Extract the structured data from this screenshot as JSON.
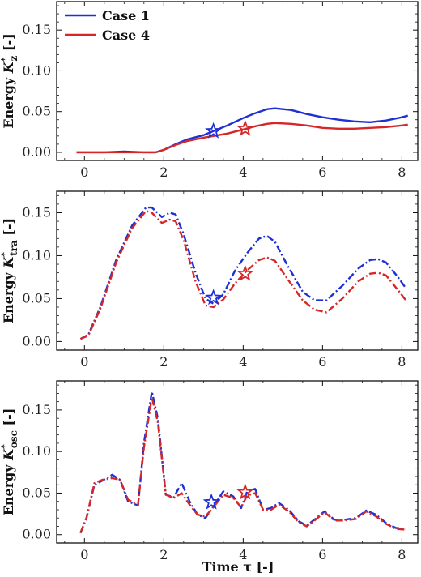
{
  "xlabel": "Time τ [-]",
  "legend": {
    "placement": "top-left",
    "entries": [
      {
        "name": "Case 1",
        "color": "#1f2fd6"
      },
      {
        "name": "Case 4",
        "color": "#d62728"
      }
    ]
  },
  "chart_data": [
    {
      "type": "line",
      "ylabel": "Energy K*z [-]",
      "ylabel_parts": {
        "prefix": "Energy ",
        "symbol": "K",
        "sup": "*",
        "sub": "z",
        "suffix": " [-]"
      },
      "xlim": [
        -0.7,
        8.4
      ],
      "ylim": [
        -0.01,
        0.185
      ],
      "xticks": [
        0,
        2,
        4,
        6,
        8
      ],
      "yticks": [
        0.0,
        0.05,
        0.1,
        0.15
      ],
      "ytick_labels": [
        "0.00",
        "0.05",
        "0.10",
        "0.15"
      ],
      "line_style": "solid",
      "series": [
        {
          "name": "Case 1",
          "color": "#1f2fd6",
          "x": [
            -0.2,
            0.5,
            1.0,
            1.5,
            1.8,
            2.0,
            2.3,
            2.6,
            3.0,
            3.25,
            3.6,
            4.0,
            4.3,
            4.6,
            4.8,
            5.2,
            5.6,
            6.0,
            6.4,
            6.8,
            7.2,
            7.6,
            8.0,
            8.15
          ],
          "y": [
            0.0,
            0.0,
            0.001,
            0.0,
            0.0,
            0.003,
            0.01,
            0.016,
            0.021,
            0.026,
            0.033,
            0.042,
            0.048,
            0.053,
            0.054,
            0.052,
            0.047,
            0.043,
            0.04,
            0.038,
            0.037,
            0.039,
            0.043,
            0.045
          ]
        },
        {
          "name": "Case 4",
          "color": "#d62728",
          "x": [
            -0.2,
            0.5,
            1.0,
            1.5,
            1.8,
            2.0,
            2.3,
            2.6,
            3.0,
            3.25,
            3.6,
            4.0,
            4.3,
            4.6,
            4.8,
            5.2,
            5.6,
            6.0,
            6.4,
            6.8,
            7.2,
            7.6,
            8.0,
            8.15
          ],
          "y": [
            0.0,
            0.0,
            0.0,
            0.0,
            0.0,
            0.003,
            0.009,
            0.014,
            0.018,
            0.02,
            0.023,
            0.028,
            0.032,
            0.035,
            0.036,
            0.035,
            0.033,
            0.03,
            0.029,
            0.029,
            0.03,
            0.031,
            0.033,
            0.034
          ]
        }
      ],
      "markers": [
        {
          "series": "Case 1",
          "x": 3.25,
          "y": 0.026
        },
        {
          "series": "Case 4",
          "x": 4.05,
          "y": 0.029
        }
      ]
    },
    {
      "type": "line",
      "ylabel": "Energy K*tra [-]",
      "ylabel_parts": {
        "prefix": "Energy ",
        "symbol": "K",
        "sup": "*",
        "sub": "tra",
        "suffix": " [-]"
      },
      "xlim": [
        -0.7,
        8.4
      ],
      "ylim": [
        -0.01,
        0.175
      ],
      "xticks": [
        0,
        2,
        4,
        6,
        8
      ],
      "yticks": [
        0.0,
        0.05,
        0.1,
        0.15
      ],
      "ytick_labels": [
        "0.00",
        "0.05",
        "0.10",
        "0.15"
      ],
      "line_style": "dashdot",
      "series": [
        {
          "name": "Case 1",
          "color": "#1f2fd6",
          "x": [
            -0.1,
            0.1,
            0.4,
            0.8,
            1.2,
            1.55,
            1.7,
            1.95,
            2.15,
            2.3,
            2.5,
            2.8,
            3.05,
            3.25,
            3.5,
            3.8,
            4.1,
            4.4,
            4.6,
            4.8,
            5.1,
            5.5,
            5.8,
            6.1,
            6.5,
            6.9,
            7.2,
            7.4,
            7.6,
            7.9,
            8.1
          ],
          "y": [
            0.003,
            0.008,
            0.04,
            0.095,
            0.135,
            0.156,
            0.156,
            0.145,
            0.15,
            0.148,
            0.125,
            0.08,
            0.05,
            0.044,
            0.055,
            0.083,
            0.103,
            0.12,
            0.123,
            0.116,
            0.09,
            0.058,
            0.048,
            0.048,
            0.065,
            0.085,
            0.095,
            0.096,
            0.092,
            0.075,
            0.062
          ]
        },
        {
          "name": "Case 4",
          "color": "#d62728",
          "x": [
            -0.1,
            0.1,
            0.4,
            0.8,
            1.2,
            1.55,
            1.7,
            1.95,
            2.15,
            2.3,
            2.5,
            2.8,
            3.05,
            3.25,
            3.5,
            3.8,
            4.1,
            4.4,
            4.6,
            4.8,
            5.1,
            5.5,
            5.8,
            6.1,
            6.5,
            6.9,
            7.2,
            7.4,
            7.6,
            7.9,
            8.1
          ],
          "y": [
            0.003,
            0.007,
            0.038,
            0.092,
            0.132,
            0.152,
            0.15,
            0.138,
            0.142,
            0.14,
            0.118,
            0.07,
            0.042,
            0.04,
            0.049,
            0.068,
            0.083,
            0.095,
            0.098,
            0.094,
            0.074,
            0.048,
            0.037,
            0.034,
            0.05,
            0.07,
            0.079,
            0.08,
            0.077,
            0.06,
            0.048
          ]
        }
      ],
      "markers": [
        {
          "series": "Case 1",
          "x": 3.25,
          "y": 0.051
        },
        {
          "series": "Case 4",
          "x": 4.05,
          "y": 0.079
        }
      ]
    },
    {
      "type": "line",
      "ylabel": "Energy K*osc [-]",
      "ylabel_parts": {
        "prefix": "Energy ",
        "symbol": "K",
        "sup": "*",
        "sub": "osc",
        "suffix": " [-]"
      },
      "xlim": [
        -0.7,
        8.4
      ],
      "ylim": [
        -0.01,
        0.185
      ],
      "xticks": [
        0,
        2,
        4,
        6,
        8
      ],
      "yticks": [
        0.0,
        0.05,
        0.1,
        0.15
      ],
      "ytick_labels": [
        "0.00",
        "0.05",
        "0.10",
        "0.15"
      ],
      "line_style": "dashdot",
      "series": [
        {
          "name": "Case 1",
          "color": "#1f2fd6",
          "x": [
            -0.1,
            0.05,
            0.25,
            0.45,
            0.7,
            0.9,
            1.1,
            1.35,
            1.5,
            1.7,
            1.85,
            2.05,
            2.25,
            2.45,
            2.65,
            2.85,
            3.05,
            3.25,
            3.5,
            3.75,
            3.95,
            4.1,
            4.3,
            4.5,
            4.7,
            4.9,
            5.15,
            5.4,
            5.6,
            5.85,
            6.05,
            6.3,
            6.55,
            6.85,
            7.1,
            7.35,
            7.6,
            7.85,
            8.1
          ],
          "y": [
            0.002,
            0.02,
            0.06,
            0.065,
            0.072,
            0.066,
            0.04,
            0.035,
            0.11,
            0.172,
            0.14,
            0.048,
            0.045,
            0.062,
            0.04,
            0.024,
            0.02,
            0.034,
            0.052,
            0.046,
            0.032,
            0.052,
            0.055,
            0.03,
            0.032,
            0.038,
            0.03,
            0.016,
            0.011,
            0.02,
            0.028,
            0.018,
            0.018,
            0.02,
            0.029,
            0.024,
            0.014,
            0.008,
            0.007
          ]
        },
        {
          "name": "Case 4",
          "color": "#d62728",
          "x": [
            -0.1,
            0.05,
            0.25,
            0.45,
            0.7,
            0.9,
            1.1,
            1.35,
            1.5,
            1.7,
            1.85,
            2.05,
            2.25,
            2.45,
            2.65,
            2.85,
            3.05,
            3.25,
            3.5,
            3.75,
            3.95,
            4.1,
            4.3,
            4.5,
            4.7,
            4.9,
            5.15,
            5.4,
            5.6,
            5.85,
            6.05,
            6.3,
            6.55,
            6.85,
            7.1,
            7.35,
            7.6,
            7.85,
            8.1
          ],
          "y": [
            0.002,
            0.02,
            0.062,
            0.066,
            0.068,
            0.066,
            0.042,
            0.036,
            0.105,
            0.165,
            0.135,
            0.048,
            0.044,
            0.05,
            0.036,
            0.024,
            0.022,
            0.033,
            0.048,
            0.044,
            0.033,
            0.047,
            0.05,
            0.03,
            0.03,
            0.036,
            0.028,
            0.015,
            0.01,
            0.019,
            0.027,
            0.017,
            0.017,
            0.019,
            0.028,
            0.022,
            0.013,
            0.007,
            0.006
          ]
        }
      ],
      "markers": [
        {
          "series": "Case 1",
          "x": 3.2,
          "y": 0.039
        },
        {
          "series": "Case 4",
          "x": 4.05,
          "y": 0.051
        }
      ]
    }
  ]
}
